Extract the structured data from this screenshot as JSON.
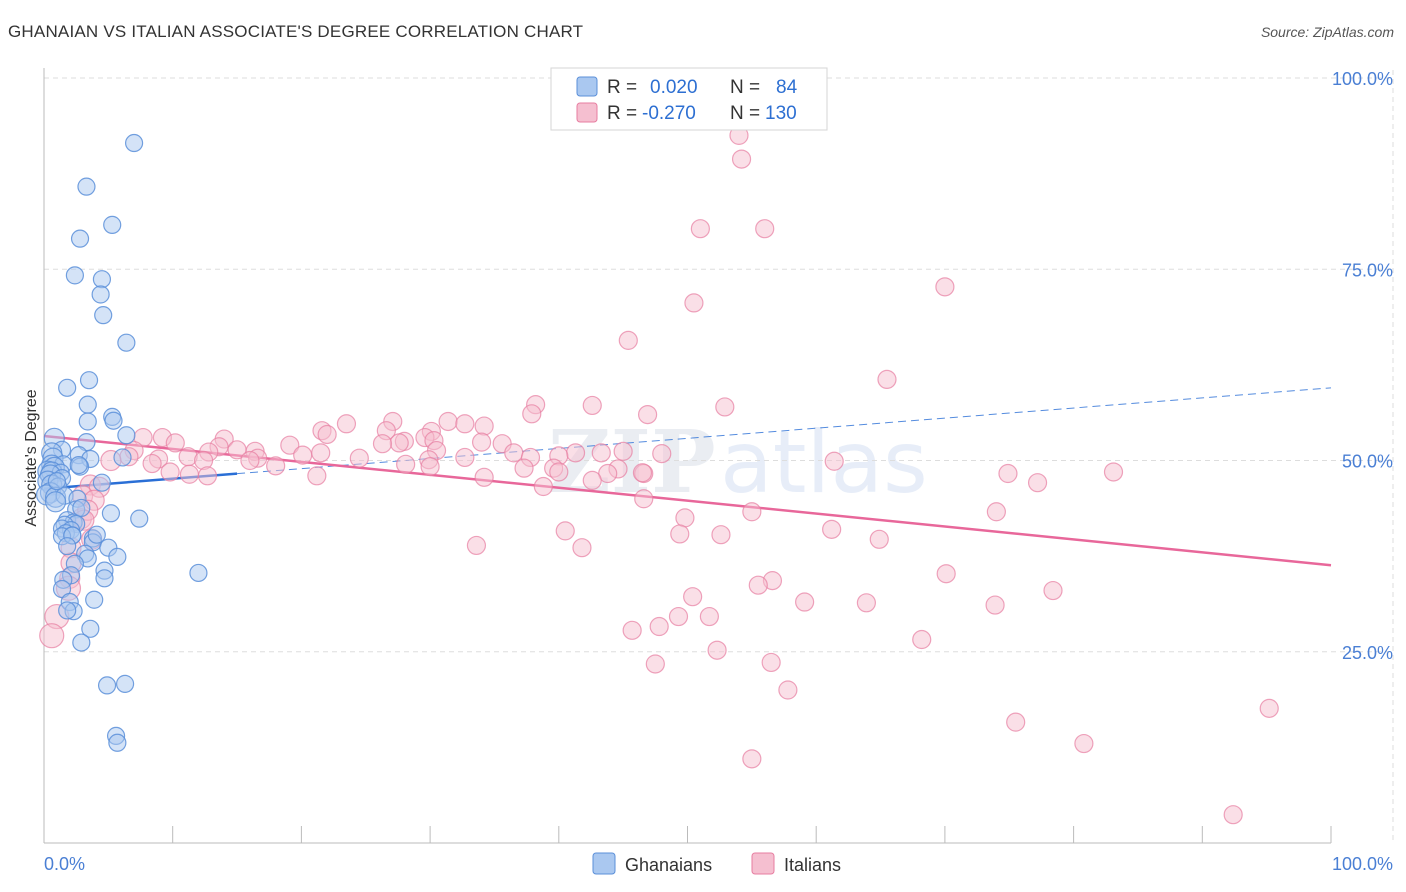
{
  "title": "GHANAIAN VS ITALIAN ASSOCIATE'S DEGREE CORRELATION CHART",
  "source": "Source: ZipAtlas.com",
  "watermark": {
    "zip": "ZIP",
    "atlas": "atlas"
  },
  "colors": {
    "blue": "#5b8fd9",
    "blue_fill": "#aac8f0",
    "blue_line": "#2a6fd6",
    "pink": "#e77ea1",
    "pink_fill": "#f5bfd0",
    "pink_line": "#e8679a",
    "accent_text": "#2d6fd2",
    "grid": "#dddddd"
  },
  "legend_top": {
    "rows": [
      {
        "r_label": "R =",
        "r_value": "0.020",
        "n_label": "N =",
        "n_value": "84"
      },
      {
        "r_label": "R =",
        "r_value": "-0.270",
        "n_label": "N =",
        "n_value": "130"
      }
    ]
  },
  "legend_bottom": {
    "series1": "Ghanaians",
    "series2": "Italians"
  },
  "chart_data": {
    "type": "scatter",
    "title": "GHANAIAN VS ITALIAN ASSOCIATE'S DEGREE CORRELATION CHART",
    "xlabel": "",
    "ylabel": "Associate's Degree",
    "xlim": [
      0,
      100
    ],
    "ylim": [
      0,
      100
    ],
    "x_tick_labels": [
      "0.0%",
      "100.0%"
    ],
    "y_ticks": [
      25,
      50,
      75,
      100
    ],
    "y_tick_labels": [
      "25.0%",
      "50.0%",
      "75.0%",
      "100.0%"
    ],
    "grid": true,
    "series": [
      {
        "name": "Ghanaians",
        "r": 0.02,
        "n": 84,
        "trend": {
          "x0": 0,
          "y0": 46.3,
          "x1": 100,
          "y1": 59.5,
          "solid_until": 15
        },
        "points": [
          [
            7.0,
            91.5
          ],
          [
            3.3,
            85.8
          ],
          [
            5.3,
            80.8
          ],
          [
            2.8,
            79.0
          ],
          [
            2.4,
            74.2
          ],
          [
            4.5,
            73.7
          ],
          [
            4.4,
            71.7
          ],
          [
            4.6,
            69.0
          ],
          [
            6.4,
            65.4
          ],
          [
            3.5,
            60.5
          ],
          [
            1.8,
            59.5
          ],
          [
            3.4,
            57.3
          ],
          [
            5.3,
            55.7
          ],
          [
            5.4,
            55.2
          ],
          [
            3.4,
            55.1
          ],
          [
            6.4,
            53.3
          ],
          [
            0.8,
            52.9
          ],
          [
            3.3,
            52.4
          ],
          [
            1.4,
            51.4
          ],
          [
            0.6,
            51.0
          ],
          [
            2.7,
            50.7
          ],
          [
            3.6,
            50.2
          ],
          [
            6.1,
            50.4
          ],
          [
            0.7,
            50.3
          ],
          [
            0.6,
            49.4
          ],
          [
            1.5,
            49.5
          ],
          [
            2.8,
            49.2
          ],
          [
            2.7,
            49.4
          ],
          [
            0.8,
            49.1
          ],
          [
            0.3,
            48.6
          ],
          [
            0.6,
            48.5
          ],
          [
            1.3,
            48.4
          ],
          [
            0.5,
            48.1
          ],
          [
            1.4,
            47.7
          ],
          [
            4.5,
            47.1
          ],
          [
            0.3,
            47.3
          ],
          [
            0.6,
            46.8
          ],
          [
            1.1,
            46.6
          ],
          [
            0.5,
            45.8
          ],
          [
            0.2,
            45.5
          ],
          [
            0.9,
            45.2
          ],
          [
            1.6,
            45.4
          ],
          [
            2.6,
            45.0
          ],
          [
            2.5,
            43.6
          ],
          [
            5.2,
            43.1
          ],
          [
            7.4,
            42.4
          ],
          [
            1.8,
            42.2
          ],
          [
            2.3,
            41.9
          ],
          [
            2.5,
            41.7
          ],
          [
            1.6,
            41.6
          ],
          [
            1.4,
            41.1
          ],
          [
            2.1,
            40.9
          ],
          [
            1.7,
            40.5
          ],
          [
            2.2,
            40.2
          ],
          [
            1.4,
            40.1
          ],
          [
            2.2,
            40.2
          ],
          [
            3.8,
            39.8
          ],
          [
            3.8,
            39.3
          ],
          [
            1.8,
            38.8
          ],
          [
            5.0,
            38.6
          ],
          [
            3.2,
            37.8
          ],
          [
            5.7,
            37.4
          ],
          [
            3.4,
            37.2
          ],
          [
            2.4,
            36.5
          ],
          [
            4.7,
            35.6
          ],
          [
            12.0,
            35.3
          ],
          [
            2.1,
            35.0
          ],
          [
            4.7,
            34.6
          ],
          [
            1.5,
            34.4
          ],
          [
            1.4,
            33.2
          ],
          [
            3.9,
            31.8
          ],
          [
            2.0,
            31.5
          ],
          [
            2.3,
            30.3
          ],
          [
            1.8,
            30.4
          ],
          [
            3.6,
            28.0
          ],
          [
            2.9,
            26.2
          ],
          [
            6.3,
            20.8
          ],
          [
            4.9,
            20.6
          ],
          [
            5.6,
            14.0
          ],
          [
            5.7,
            13.1
          ],
          [
            0.9,
            44.6
          ],
          [
            1.0,
            47.3
          ],
          [
            2.9,
            43.8
          ],
          [
            4.1,
            40.3
          ]
        ]
      },
      {
        "name": "Italians",
        "r": -0.27,
        "n": 130,
        "trend": {
          "x0": 0,
          "y0": 53.2,
          "x1": 100,
          "y1": 36.3
        },
        "points": [
          [
            54.0,
            92.5
          ],
          [
            54.2,
            89.4
          ],
          [
            51.0,
            80.3
          ],
          [
            56.0,
            80.3
          ],
          [
            70.0,
            72.7
          ],
          [
            50.5,
            70.6
          ],
          [
            45.4,
            65.7
          ],
          [
            65.5,
            60.6
          ],
          [
            38.2,
            57.3
          ],
          [
            42.6,
            57.2
          ],
          [
            52.9,
            57.0
          ],
          [
            46.9,
            56.0
          ],
          [
            37.9,
            56.1
          ],
          [
            27.1,
            55.1
          ],
          [
            31.4,
            55.1
          ],
          [
            32.7,
            54.8
          ],
          [
            23.5,
            54.8
          ],
          [
            34.2,
            54.5
          ],
          [
            26.6,
            53.9
          ],
          [
            21.6,
            53.9
          ],
          [
            30.1,
            53.8
          ],
          [
            22.0,
            53.4
          ],
          [
            7.7,
            53.0
          ],
          [
            9.2,
            53.0
          ],
          [
            29.6,
            53.0
          ],
          [
            14.0,
            52.8
          ],
          [
            30.3,
            52.6
          ],
          [
            34.0,
            52.4
          ],
          [
            28.0,
            52.5
          ],
          [
            10.2,
            52.3
          ],
          [
            27.6,
            52.3
          ],
          [
            26.3,
            52.2
          ],
          [
            19.1,
            52.0
          ],
          [
            35.6,
            52.2
          ],
          [
            13.6,
            51.8
          ],
          [
            7.0,
            51.3
          ],
          [
            12.8,
            51.1
          ],
          [
            30.5,
            51.3
          ],
          [
            15.0,
            51.4
          ],
          [
            36.5,
            51.0
          ],
          [
            21.5,
            51.0
          ],
          [
            16.4,
            51.2
          ],
          [
            6.6,
            50.5
          ],
          [
            32.7,
            50.4
          ],
          [
            45.0,
            51.2
          ],
          [
            41.3,
            51.0
          ],
          [
            48.0,
            50.9
          ],
          [
            43.3,
            51.0
          ],
          [
            37.8,
            50.4
          ],
          [
            20.1,
            50.7
          ],
          [
            40.0,
            50.6
          ],
          [
            16.6,
            50.3
          ],
          [
            11.2,
            50.5
          ],
          [
            24.5,
            50.3
          ],
          [
            8.9,
            50.2
          ],
          [
            29.9,
            50.1
          ],
          [
            12.4,
            50.0
          ],
          [
            16.0,
            50.0
          ],
          [
            5.2,
            50.0
          ],
          [
            28.1,
            49.5
          ],
          [
            8.4,
            49.6
          ],
          [
            18.0,
            49.3
          ],
          [
            30.0,
            49.2
          ],
          [
            39.6,
            49.0
          ],
          [
            37.3,
            49.0
          ],
          [
            44.6,
            48.9
          ],
          [
            40.0,
            48.5
          ],
          [
            43.8,
            48.3
          ],
          [
            46.6,
            48.3
          ],
          [
            9.8,
            48.5
          ],
          [
            12.7,
            48.0
          ],
          [
            21.2,
            48.0
          ],
          [
            34.2,
            47.8
          ],
          [
            74.9,
            48.3
          ],
          [
            61.4,
            49.9
          ],
          [
            42.6,
            47.4
          ],
          [
            38.8,
            46.6
          ],
          [
            77.2,
            47.1
          ],
          [
            46.5,
            48.4
          ],
          [
            11.3,
            48.2
          ],
          [
            3.6,
            46.8
          ],
          [
            4.3,
            46.5
          ],
          [
            3.0,
            45.4
          ],
          [
            3.9,
            44.8
          ],
          [
            46.6,
            45.0
          ],
          [
            2.9,
            42.4
          ],
          [
            3.4,
            43.5
          ],
          [
            55.0,
            43.3
          ],
          [
            83.1,
            48.5
          ],
          [
            74.0,
            43.3
          ],
          [
            49.8,
            42.5
          ],
          [
            40.5,
            40.8
          ],
          [
            49.4,
            40.4
          ],
          [
            33.6,
            38.9
          ],
          [
            41.8,
            38.6
          ],
          [
            52.6,
            40.3
          ],
          [
            2.1,
            38.6
          ],
          [
            3.7,
            39.7
          ],
          [
            2.1,
            36.6
          ],
          [
            2.0,
            34.6
          ],
          [
            1.9,
            33.3
          ],
          [
            56.6,
            34.3
          ],
          [
            55.5,
            33.7
          ],
          [
            70.1,
            35.2
          ],
          [
            59.1,
            31.5
          ],
          [
            78.4,
            33.0
          ],
          [
            50.4,
            32.2
          ],
          [
            63.9,
            31.4
          ],
          [
            73.9,
            31.1
          ],
          [
            51.7,
            29.6
          ],
          [
            49.3,
            29.6
          ],
          [
            1.0,
            29.6
          ],
          [
            47.8,
            28.3
          ],
          [
            45.7,
            27.8
          ],
          [
            68.2,
            26.6
          ],
          [
            52.3,
            25.2
          ],
          [
            56.5,
            23.6
          ],
          [
            47.5,
            23.4
          ],
          [
            57.8,
            20.0
          ],
          [
            95.2,
            17.6
          ],
          [
            75.5,
            15.8
          ],
          [
            80.8,
            13.0
          ],
          [
            55.0,
            11.0
          ],
          [
            92.4,
            3.7
          ],
          [
            0.6,
            27.1
          ],
          [
            3.1,
            42.2
          ],
          [
            61.2,
            41.0
          ],
          [
            64.9,
            39.7
          ]
        ]
      }
    ]
  }
}
